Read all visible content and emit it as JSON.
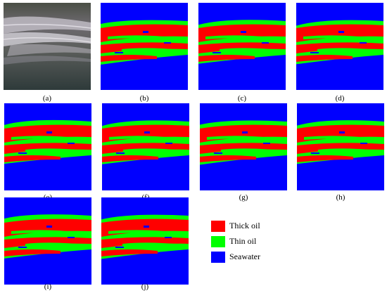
{
  "figure": {
    "panels": [
      {
        "id": "a",
        "caption": "(a)",
        "kind": "photo"
      },
      {
        "id": "b",
        "caption": "(b)",
        "kind": "classification"
      },
      {
        "id": "c",
        "caption": "(c)",
        "kind": "classification"
      },
      {
        "id": "d",
        "caption": "(d)",
        "kind": "classification"
      },
      {
        "id": "e",
        "caption": "(e)",
        "kind": "classification"
      },
      {
        "id": "f",
        "caption": "(f)",
        "kind": "classification"
      },
      {
        "id": "g",
        "caption": "(g)",
        "kind": "classification"
      },
      {
        "id": "h",
        "caption": "(h)",
        "kind": "classification"
      },
      {
        "id": "i",
        "caption": "(i)",
        "kind": "classification"
      },
      {
        "id": "j",
        "caption": "(j)",
        "kind": "classification"
      }
    ],
    "legend": [
      {
        "label": "Thick oil",
        "color": "#ff0000"
      },
      {
        "label": "Thin oil",
        "color": "#00ff00"
      },
      {
        "label": "Seawater",
        "color": "#0000ff"
      }
    ]
  }
}
